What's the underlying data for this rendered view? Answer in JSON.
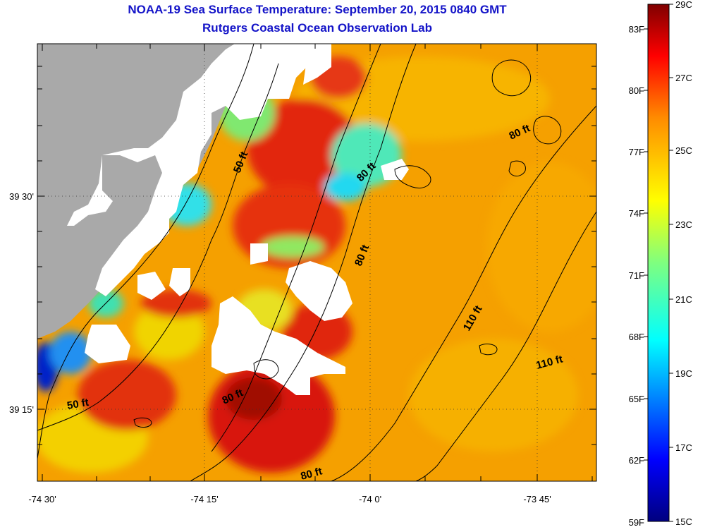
{
  "title": "NOAA-19 Sea Surface Temperature:  September 20, 2015 0840 GMT",
  "subtitle": "Rutgers Coastal Ocean Observation Lab",
  "axes": {
    "lon_labels": [
      "-74 30'",
      "-74 15'",
      "-74 0'",
      "-73 45'"
    ],
    "lat_labels": [
      "39 30'",
      "39 15'"
    ]
  },
  "colorbar": {
    "f_labels": [
      "83F",
      "80F",
      "77F",
      "74F",
      "71F",
      "68F",
      "65F",
      "62F",
      "59F"
    ],
    "c_labels": [
      "29C",
      "27C",
      "25C",
      "23C",
      "21C",
      "19C",
      "17C",
      "15C"
    ]
  },
  "depth_labels": [
    "50 ft",
    "80 ft",
    "80 ft",
    "80 ft",
    "80 ft",
    "110 ft",
    "110 ft",
    "50 ft",
    "80 ft"
  ],
  "colors": {
    "land": "#a9a9a9",
    "cloud": "#ffffff",
    "title": "#1414c8",
    "warm": "#f5a000",
    "hot": "#e01e00",
    "cool": "#34e6e0"
  }
}
